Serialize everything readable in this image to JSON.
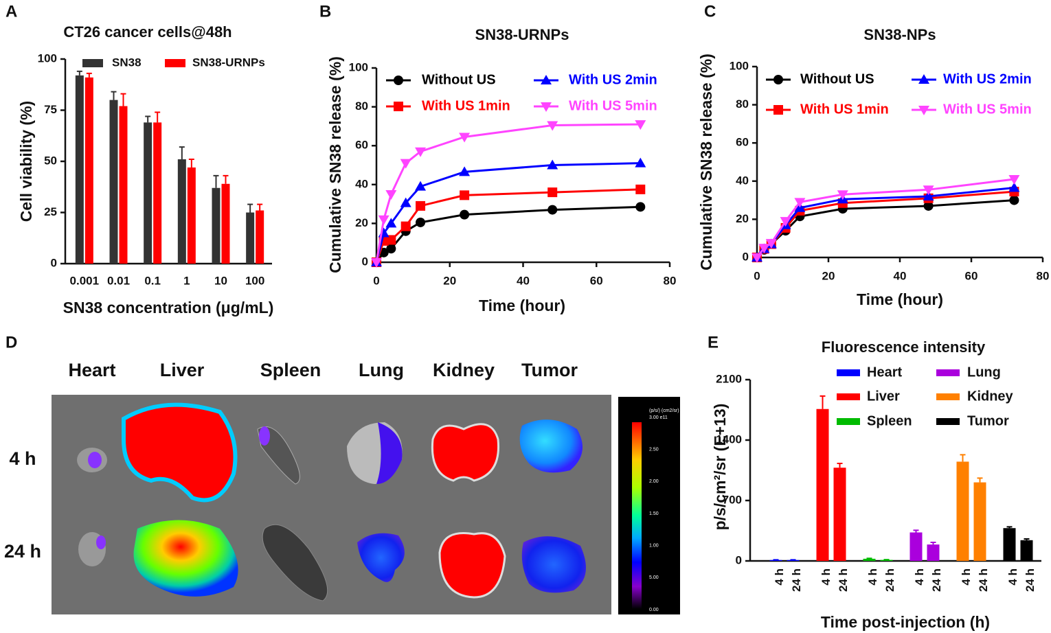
{
  "chart_data": [
    {
      "panel": "A",
      "type": "bar",
      "title": "CT26 cancer cells@48h",
      "x_label": "SN38 concentration (μg/mL)",
      "y_label": "Cell viability (%)",
      "categories": [
        "0.001",
        "0.01",
        "0.1",
        "1",
        "10",
        "100"
      ],
      "series": [
        {
          "name": "SN38",
          "color": "#333333",
          "values": [
            92,
            80,
            69,
            51,
            37,
            25
          ],
          "errors": [
            2,
            4,
            3,
            6,
            6,
            4
          ]
        },
        {
          "name": "SN38-URNPs",
          "color": "#ff0000",
          "values": [
            91,
            77,
            69,
            47,
            39,
            26
          ],
          "errors": [
            2,
            6,
            5,
            4,
            4,
            3
          ]
        }
      ],
      "ylim": [
        0,
        100
      ],
      "yticks": [
        0,
        25,
        50,
        75,
        100
      ]
    },
    {
      "panel": "B",
      "type": "line",
      "title": "SN38-URNPs",
      "x_label": "Time (hour)",
      "y_label": "Cumulative SN38 release (%)",
      "x": [
        0,
        2,
        4,
        8,
        12,
        24,
        48,
        72
      ],
      "series": [
        {
          "name": "Without US",
          "color": "#000000",
          "marker": "circle",
          "values": [
            0,
            5,
            7,
            16,
            20.5,
            24.5,
            27,
            28.5
          ]
        },
        {
          "name": "With US 1min",
          "color": "#ff0000",
          "marker": "square",
          "values": [
            0,
            11,
            11.5,
            18.5,
            29,
            34.5,
            36,
            37.5
          ]
        },
        {
          "name": "With US 2min",
          "color": "#0000ff",
          "marker": "triangle-up",
          "values": [
            0,
            15,
            20,
            30.5,
            39,
            46.5,
            50,
            51
          ]
        },
        {
          "name": "With US 5min",
          "color": "#ff44ff",
          "marker": "triangle-down",
          "values": [
            0,
            22,
            35,
            51,
            57,
            64.5,
            70.5,
            71
          ]
        }
      ],
      "xlim": [
        0,
        80
      ],
      "xticks": [
        0,
        20,
        40,
        60,
        80
      ],
      "ylim": [
        0,
        100
      ],
      "yticks": [
        0,
        20,
        40,
        60,
        80,
        100
      ]
    },
    {
      "panel": "C",
      "type": "line",
      "title": "SN38-NPs",
      "x_label": "Time (hour)",
      "y_label": "Cumulative SN38 release (%)",
      "x": [
        0,
        2,
        4,
        8,
        12,
        24,
        48,
        72
      ],
      "series": [
        {
          "name": "Without US",
          "color": "#000000",
          "marker": "circle",
          "values": [
            0,
            4,
            7,
            14,
            21.5,
            25.5,
            27,
            30
          ]
        },
        {
          "name": "With US 1min",
          "color": "#ff0000",
          "marker": "square",
          "values": [
            0,
            4.5,
            7,
            15.5,
            24.5,
            28.5,
            31,
            34.5
          ]
        },
        {
          "name": "With US 2min",
          "color": "#0000ff",
          "marker": "triangle-up",
          "values": [
            0,
            4.5,
            7,
            17,
            26,
            30.5,
            32,
            36.5
          ]
        },
        {
          "name": "With US 5min",
          "color": "#ff44ff",
          "marker": "triangle-down",
          "values": [
            0,
            5,
            7.5,
            19,
            29,
            33,
            35.5,
            41
          ]
        }
      ],
      "xlim": [
        0,
        80
      ],
      "xticks": [
        0,
        20,
        40,
        60,
        80
      ],
      "ylim": [
        0,
        100
      ],
      "yticks": [
        0,
        20,
        40,
        60,
        80,
        100
      ]
    },
    {
      "panel": "E",
      "type": "grouped_bar",
      "title": "Fluorescence intensity",
      "x_label": "Time post-injection (h)",
      "y_label": "p/s/cm²/sr (E+13)",
      "times": [
        "4 h",
        "24 h"
      ],
      "series": [
        {
          "name": "Heart",
          "color": "#0000ff",
          "values": [
            10,
            10
          ],
          "errors": [
            3,
            3
          ]
        },
        {
          "name": "Liver",
          "color": "#ff0000",
          "values": [
            1760,
            1080
          ],
          "errors": [
            150,
            50
          ]
        },
        {
          "name": "Spleen",
          "color": "#00bb00",
          "values": [
            25,
            12
          ],
          "errors": [
            5,
            3
          ]
        },
        {
          "name": "Lung",
          "color": "#aa00dd",
          "values": [
            330,
            190
          ],
          "errors": [
            25,
            25
          ]
        },
        {
          "name": "Kidney",
          "color": "#ff8000",
          "values": [
            1150,
            910
          ],
          "errors": [
            80,
            50
          ]
        },
        {
          "name": "Tumor",
          "color": "#000000",
          "values": [
            380,
            240
          ],
          "errors": [
            15,
            15
          ]
        }
      ],
      "ylim": [
        0,
        2100
      ],
      "yticks": [
        0,
        700,
        1400,
        2100
      ]
    }
  ],
  "image_panel": {
    "panel": "D",
    "organs": [
      "Heart",
      "Liver",
      "Spleen",
      "Lung",
      "Kidney",
      "Tumor"
    ],
    "rows": [
      "4 h",
      "24 h"
    ],
    "scale_unit": "(p/s/) (cm2/sr)",
    "scale_labels": [
      "3.00 e11",
      "2.50",
      "2.00",
      "1.50",
      "1.00",
      "5.00",
      "0.00"
    ]
  }
}
